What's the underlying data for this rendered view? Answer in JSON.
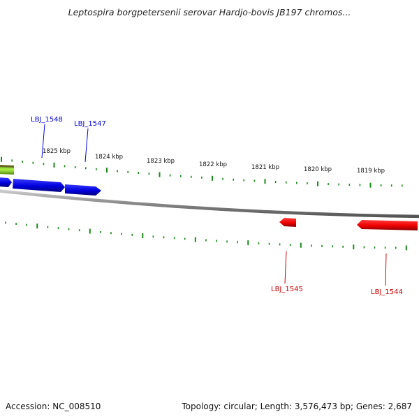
{
  "header": {
    "title": "Leptospira borgpetersenii serovar Hardjo-bovis JB197 chromos..."
  },
  "footer": {
    "accession": "Accession: NC_008510",
    "summary": "Topology: circular; Length: 3,576,473 bp; Genes: 2,687"
  },
  "colors": {
    "forward_gene": "#0000dd",
    "reverse_gene": "#ee0000",
    "other_feature": "#88cc22",
    "ticks": "#1a8a1a",
    "backbone": "#777777"
  },
  "scale": {
    "unit": "kbp",
    "ticks": [
      {
        "label": "1825 kbp",
        "kbp": 1825
      },
      {
        "label": "1824 kbp",
        "kbp": 1824
      },
      {
        "label": "1823 kbp",
        "kbp": 1823
      },
      {
        "label": "1822 kbp",
        "kbp": 1822
      },
      {
        "label": "1821 kbp",
        "kbp": 1821
      },
      {
        "label": "1820 kbp",
        "kbp": 1820
      },
      {
        "label": "1819 kbp",
        "kbp": 1819
      }
    ]
  },
  "genes": [
    {
      "name": "LBJ_1548",
      "strand": "forward",
      "labeled": true
    },
    {
      "name": "LBJ_1547",
      "strand": "forward",
      "labeled": true
    },
    {
      "name": "LBJ_1545",
      "strand": "reverse",
      "labeled": true
    },
    {
      "name": "LBJ_1544",
      "strand": "reverse",
      "labeled": true
    }
  ]
}
